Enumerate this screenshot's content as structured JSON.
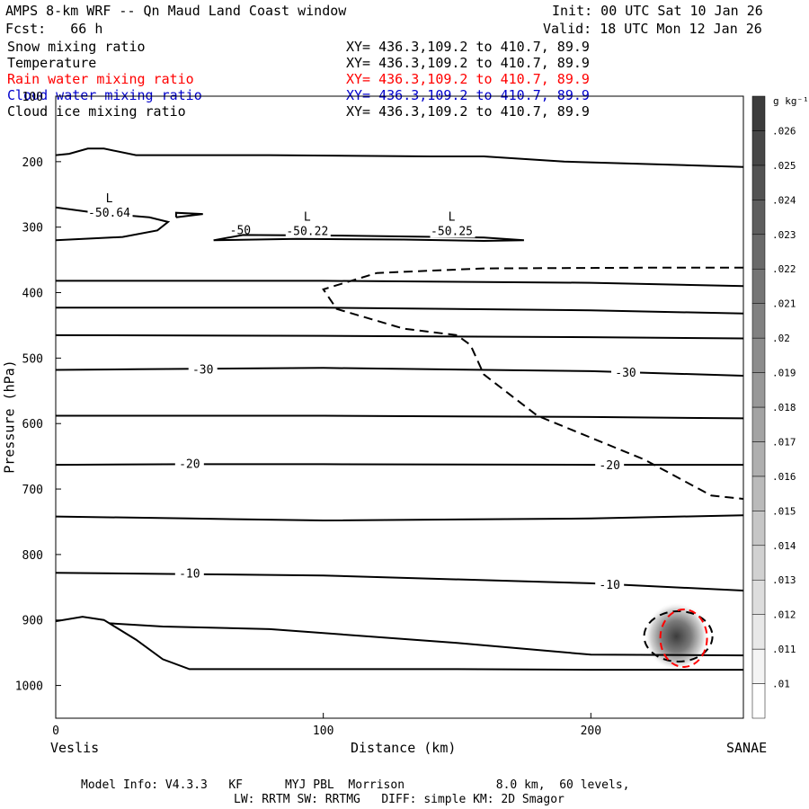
{
  "header": {
    "title": "AMPS 8-km WRF -- Qn Maud Land Coast window",
    "forecast": "Fcst:   66 h",
    "init": "Init: 00 UTC Sat 10 Jan 26",
    "valid": "Valid: 18 UTC Mon 12 Jan 26"
  },
  "fields": [
    {
      "name": "Snow mixing ratio",
      "xy": "XY= 436.3,109.2 to 410.7, 89.9",
      "color": "#000000"
    },
    {
      "name": "Temperature",
      "xy": "XY= 436.3,109.2 to 410.7, 89.9",
      "color": "#000000"
    },
    {
      "name": "Rain water mixing ratio",
      "xy": "XY= 436.3,109.2 to 410.7, 89.9",
      "color": "#ff0000"
    },
    {
      "name": "Cloud water mixing ratio",
      "xy": "XY= 436.3,109.2 to 410.7, 89.9",
      "color": "#0000cc"
    },
    {
      "name": "Cloud ice mixing ratio",
      "xy": "XY= 436.3,109.2 to 410.7, 89.9",
      "color": "#000000"
    }
  ],
  "footer": {
    "line1": "Model Info: V4.3.3   KF      MYJ PBL  Morrison             8.0 km,  60 levels,",
    "line2": "LW: RRTM SW: RRTMG   DIFF: simple KM: 2D Smagor"
  },
  "chart_data": {
    "type": "cross-section",
    "xlabel": "Distance (km)",
    "ylabel": "Pressure (hPa)",
    "xlim": [
      0,
      257
    ],
    "ylim": [
      1050,
      100
    ],
    "x_ticks": [
      0,
      100,
      200
    ],
    "y_ticks": [
      100,
      200,
      300,
      400,
      500,
      600,
      700,
      800,
      900,
      1000
    ],
    "left_endpoint": "Veslis",
    "right_endpoint": "SANAE",
    "colorbar": {
      "unit": "g kg⁻¹",
      "levels": [
        ".01",
        ".011",
        ".012",
        ".013",
        ".014",
        ".015",
        ".016",
        ".017",
        ".018",
        ".019",
        ".02",
        ".021",
        ".022",
        ".023",
        ".024",
        ".025",
        ".026"
      ]
    },
    "temperature_isotherms": [
      {
        "points": [
          [
            0,
            190
          ],
          [
            5,
            188
          ],
          [
            12,
            180
          ],
          [
            18,
            180
          ],
          [
            30,
            190
          ],
          [
            80,
            190
          ],
          [
            140,
            192
          ],
          [
            160,
            192
          ],
          [
            190,
            200
          ],
          [
            257,
            208
          ]
        ]
      },
      {
        "points": [
          [
            0,
            382
          ],
          [
            100,
            382
          ],
          [
            200,
            385
          ],
          [
            257,
            390
          ]
        ]
      },
      {
        "points": [
          [
            0,
            423
          ],
          [
            100,
            423
          ],
          [
            200,
            427
          ],
          [
            257,
            432
          ]
        ]
      },
      {
        "points": [
          [
            0,
            465
          ],
          [
            100,
            466
          ],
          [
            200,
            468
          ],
          [
            257,
            470
          ]
        ]
      },
      {
        "points": [
          [
            0,
            518
          ],
          [
            30,
            517
          ],
          [
            100,
            515
          ],
          [
            200,
            520
          ],
          [
            257,
            527
          ]
        ],
        "label": "-30",
        "label_at": [
          [
            55,
            518
          ],
          [
            213,
            523
          ]
        ]
      },
      {
        "points": [
          [
            0,
            588
          ],
          [
            100,
            588
          ],
          [
            200,
            590
          ],
          [
            257,
            592
          ]
        ]
      },
      {
        "points": [
          [
            0,
            663
          ],
          [
            50,
            662
          ],
          [
            100,
            662
          ],
          [
            200,
            663
          ],
          [
            257,
            663
          ]
        ],
        "label": "-20",
        "label_at": [
          [
            50,
            662
          ],
          [
            207,
            664
          ]
        ]
      },
      {
        "points": [
          [
            0,
            742
          ],
          [
            50,
            745
          ],
          [
            100,
            748
          ],
          [
            200,
            745
          ],
          [
            257,
            740
          ]
        ]
      },
      {
        "points": [
          [
            0,
            828
          ],
          [
            50,
            830
          ],
          [
            100,
            832
          ],
          [
            200,
            844
          ],
          [
            257,
            855
          ]
        ],
        "label": "-10",
        "label_at": [
          [
            50,
            830
          ],
          [
            207,
            847
          ]
        ]
      }
    ],
    "temperature_lows": [
      {
        "label": "L",
        "value": "-50.64",
        "x": 20,
        "p": 262
      },
      {
        "label": "L",
        "value": "-50.22",
        "x": 94,
        "p": 290
      },
      {
        "label": "L",
        "value": "-50.25",
        "x": 148,
        "p": 290
      },
      {
        "label": "-50",
        "value": "",
        "x": 69,
        "p": 311
      }
    ],
    "snow_mixing_ratio_contour": [
      [
        257,
        362
      ],
      [
        220,
        362
      ],
      [
        160,
        363
      ],
      [
        120,
        370
      ],
      [
        100,
        395
      ],
      [
        105,
        425
      ],
      [
        130,
        455
      ],
      [
        150,
        465
      ],
      [
        155,
        480
      ],
      [
        160,
        525
      ],
      [
        180,
        588
      ],
      [
        220,
        655
      ],
      [
        245,
        710
      ],
      [
        257,
        715
      ]
    ],
    "rain_water_max_g_per_kg": 0.021,
    "rain_water_center": {
      "x": 232,
      "p": 925
    }
  }
}
